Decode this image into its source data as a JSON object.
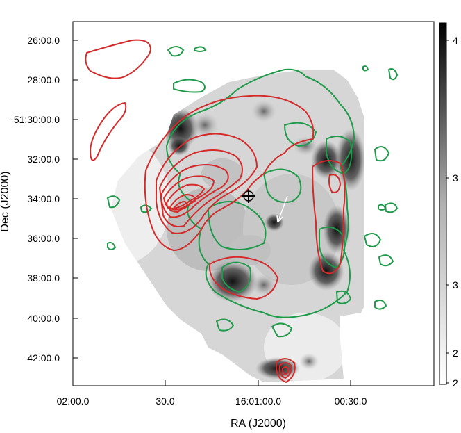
{
  "chart_data": {
    "type": "heatmap",
    "title": "",
    "xlabel": "RA (J2000)",
    "ylabel": "Dec (J2000)",
    "x_ticks": [
      "02:00.0",
      "30.0",
      "16:01:00.0",
      "00:30.0"
    ],
    "y_ticks": [
      "26:00.0",
      "28:00.0",
      "−51:30:00.0",
      "32:00.0",
      "34:00.0",
      "36:00.0",
      "38:00.0",
      "40:00.0",
      "42:00.0"
    ],
    "colorbar_ticks": [
      "4",
      "3",
      "3",
      "2",
      "2"
    ],
    "colormap": "grayscale (white = low, black = high)",
    "overlays": [
      {
        "kind": "contours",
        "color": "#d42a2a",
        "description": "red contour set"
      },
      {
        "kind": "contours",
        "color": "#1f9a4a",
        "description": "green contour set"
      }
    ],
    "markers": [
      {
        "kind": "cross",
        "color": "#000000"
      },
      {
        "kind": "arrow",
        "color": "#ffffff"
      }
    ],
    "grid": false
  },
  "colors": {
    "red_contour": "#d42a2a",
    "green_contour": "#1f9a4a"
  }
}
